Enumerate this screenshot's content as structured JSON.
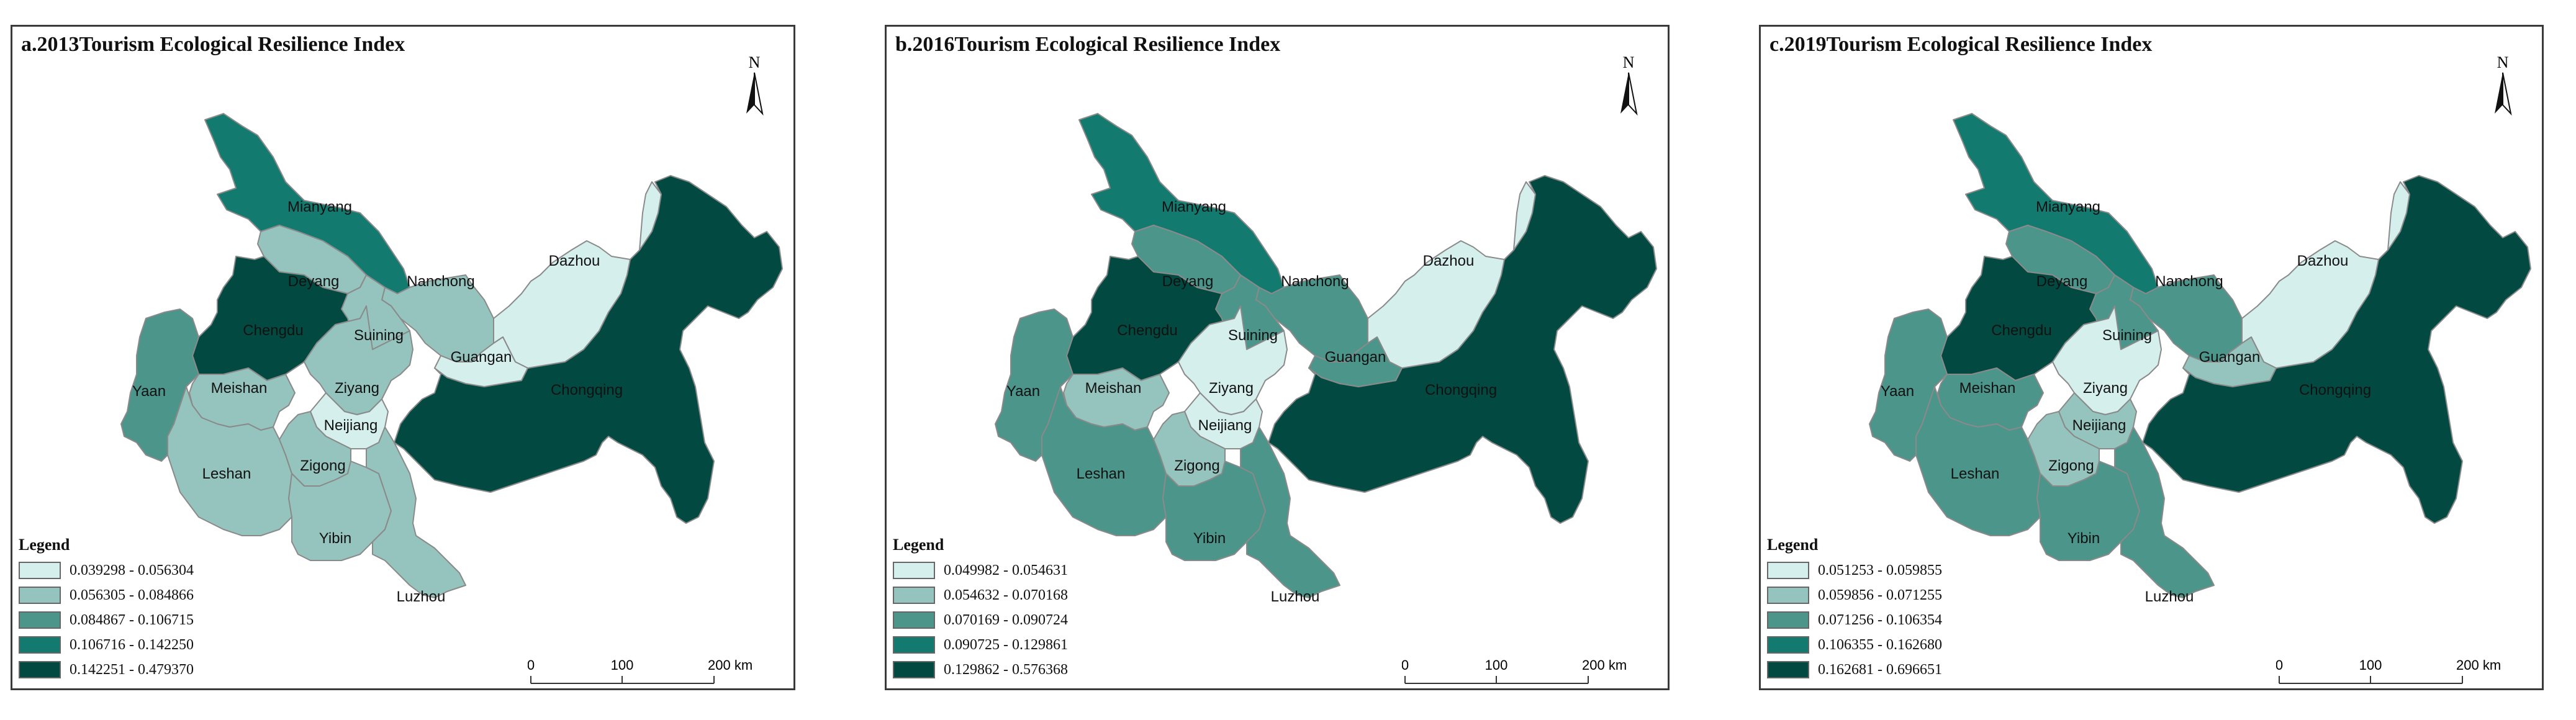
{
  "panels": [
    {
      "title": "a.2013Tourism Ecological Resilience Index",
      "legend_title": "Legend",
      "legend": [
        "0.039298 - 0.056304",
        "0.056305 - 0.084866",
        "0.084867 - 0.106715",
        "0.106716 - 0.142250",
        "0.142251 - 0.479370"
      ],
      "classes": {
        "Mianyang": 3,
        "Deyang": 1,
        "Nanchong": 1,
        "Dazhou": 0,
        "Chengdu": 4,
        "Suining": 1,
        "Guangan": 0,
        "Yaan": 2,
        "Meishan": 1,
        "Ziyang": 1,
        "Neijiang": 0,
        "Leshan": 1,
        "Zigong": 1,
        "Yibin": 1,
        "Luzhou": 1,
        "Chongqing": 4
      }
    },
    {
      "title": "b.2016Tourism Ecological Resilience Index",
      "legend_title": "Legend",
      "legend": [
        "0.049982 - 0.054631",
        "0.054632 - 0.070168",
        "0.070169 - 0.090724",
        "0.090725 - 0.129861",
        "0.129862 - 0.576368"
      ],
      "classes": {
        "Mianyang": 3,
        "Deyang": 2,
        "Nanchong": 2,
        "Dazhou": 0,
        "Chengdu": 4,
        "Suining": 2,
        "Guangan": 2,
        "Yaan": 2,
        "Meishan": 1,
        "Ziyang": 0,
        "Neijiang": 0,
        "Leshan": 2,
        "Zigong": 1,
        "Yibin": 2,
        "Luzhou": 2,
        "Chongqing": 4
      }
    },
    {
      "title": "c.2019Tourism Ecological Resilience Index",
      "legend_title": "Legend",
      "legend": [
        "0.051253 - 0.059855",
        "0.059856 - 0.071255",
        "0.071256 - 0.106354",
        "0.106355 - 0.162680",
        "0.162681 - 0.696651"
      ],
      "classes": {
        "Mianyang": 3,
        "Deyang": 2,
        "Nanchong": 2,
        "Dazhou": 0,
        "Chengdu": 4,
        "Suining": 2,
        "Guangan": 1,
        "Yaan": 2,
        "Meishan": 2,
        "Ziyang": 0,
        "Neijiang": 1,
        "Leshan": 2,
        "Zigong": 1,
        "Yibin": 2,
        "Luzhou": 2,
        "Chongqing": 4
      }
    }
  ],
  "colors": [
    "#d5efec",
    "#94c4bd",
    "#4b958a",
    "#127a6f",
    "#024a41"
  ],
  "north_label": "N",
  "scale": {
    "ticks": [
      "0",
      "100",
      "200 km"
    ]
  }
}
